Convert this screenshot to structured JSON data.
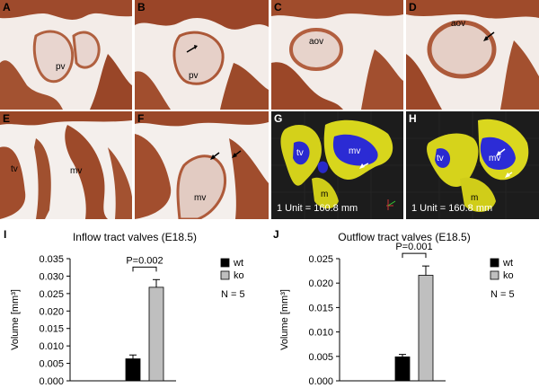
{
  "panels": [
    {
      "letter": "A",
      "labels": [
        "pv"
      ]
    },
    {
      "letter": "B",
      "labels": [
        "pv"
      ]
    },
    {
      "letter": "C",
      "labels": [
        "aov"
      ]
    },
    {
      "letter": "D",
      "labels": [
        "aov"
      ]
    },
    {
      "letter": "E",
      "labels": [
        "tv",
        "mv"
      ]
    },
    {
      "letter": "F",
      "labels": [
        "mv"
      ]
    },
    {
      "letter": "G",
      "labels": [
        "tv",
        "mv",
        "m"
      ],
      "unit_text": "1 Unit = 160.8  mm"
    },
    {
      "letter": "H",
      "labels": [
        "tv",
        "mv",
        "m"
      ],
      "unit_text": "1 Unit = 160.8  mm"
    }
  ],
  "chart_data": [
    {
      "letter": "I",
      "type": "bar",
      "title": "Inflow tract valves (E18.5)",
      "ylabel": "Volume [mm³]",
      "categories": [
        "wt",
        "ko"
      ],
      "values": [
        0.0063,
        0.0268
      ],
      "errors": [
        0.0011,
        0.0022
      ],
      "ylim": [
        0,
        0.035
      ],
      "yticks": [
        "0.000",
        "0.005",
        "0.010",
        "0.015",
        "0.020",
        "0.025",
        "0.030",
        "0.035"
      ],
      "ytick_values": [
        0,
        0.005,
        0.01,
        0.015,
        0.02,
        0.025,
        0.03,
        0.035
      ],
      "pvalue": "P=0.002",
      "legend": [
        "wt",
        "ko"
      ],
      "n_label": "N = 5",
      "colors": [
        "#000000",
        "#bfbfbf"
      ]
    },
    {
      "letter": "J",
      "type": "bar",
      "title": "Outflow tract valves (E18.5)",
      "ylabel": "Volume [mm³]",
      "categories": [
        "wt",
        "ko"
      ],
      "values": [
        0.0049,
        0.0216
      ],
      "errors": [
        0.0005,
        0.0019
      ],
      "ylim": [
        0,
        0.025
      ],
      "yticks": [
        "0.000",
        "0.005",
        "0.010",
        "0.015",
        "0.020",
        "0.025"
      ],
      "ytick_values": [
        0,
        0.005,
        0.01,
        0.015,
        0.02,
        0.025
      ],
      "pvalue": "P=0.001",
      "legend": [
        "wt",
        "ko"
      ],
      "n_label": "N = 5",
      "colors": [
        "#000000",
        "#bfbfbf"
      ]
    }
  ]
}
